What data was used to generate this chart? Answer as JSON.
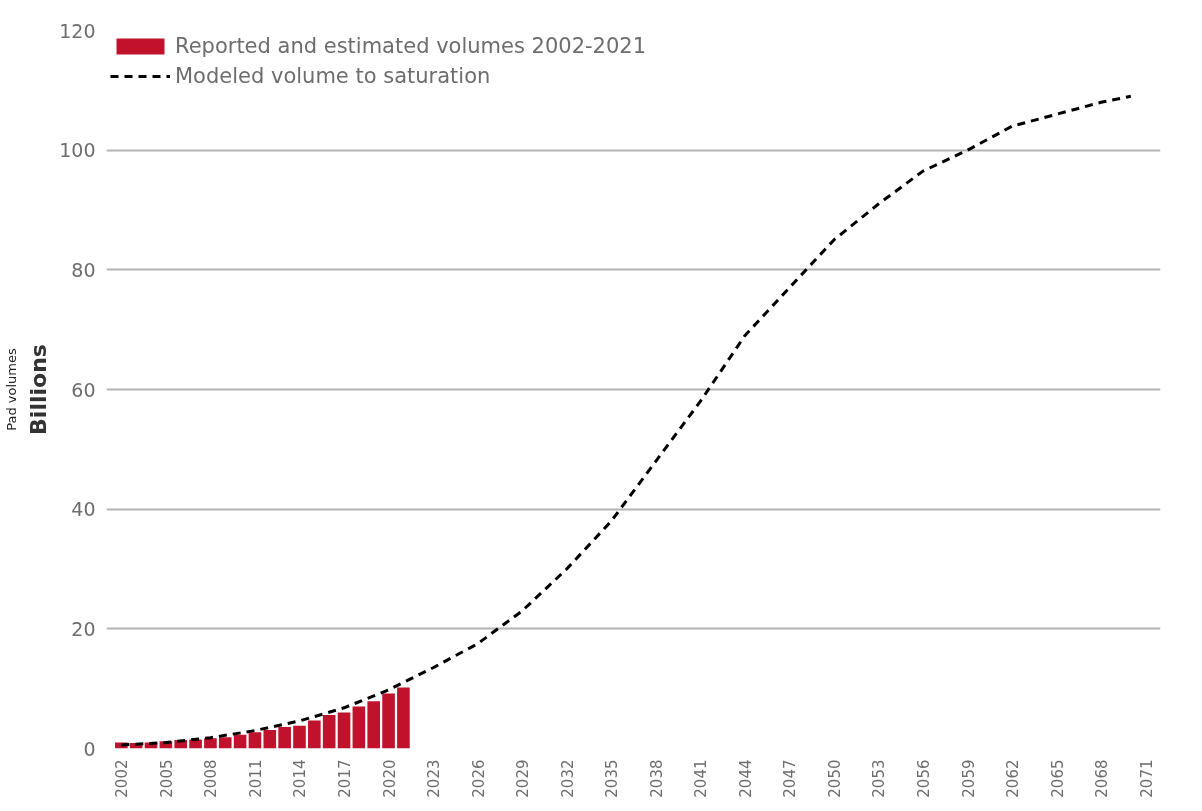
{
  "chart_data": {
    "type": "bar",
    "ylabel": "Billions",
    "annotations": [
      "Pad volumes"
    ],
    "xlim": [
      2001,
      2072
    ],
    "xticks": [
      2002,
      2005,
      2008,
      2011,
      2014,
      2017,
      2020,
      2023,
      2026,
      2029,
      2032,
      2035,
      2038,
      2041,
      2044,
      2047,
      2050,
      2053,
      2056,
      2059,
      2062,
      2065,
      2068,
      2071
    ],
    "ylim": [
      0,
      120
    ],
    "yticks": [
      0,
      20,
      40,
      60,
      80,
      100,
      120
    ],
    "grid": "y",
    "legend": "top left",
    "series": [
      {
        "name": "Reported and estimated volumes 2002-2021",
        "color": "#c0122c",
        "x": [
          2002,
          2003,
          2004,
          2005,
          2006,
          2007,
          2008,
          2009,
          2010,
          2011,
          2012,
          2013,
          2014,
          2015,
          2016,
          2017,
          2018,
          2019,
          2020,
          2021
        ],
        "values": [
          1.0,
          0.9,
          1.0,
          1.2,
          1.4,
          1.5,
          1.7,
          1.9,
          2.3,
          2.7,
          3.1,
          3.6,
          3.8,
          4.7,
          5.6,
          6.0,
          7.0,
          7.9,
          9.2,
          10.2
        ]
      },
      {
        "name": "Modeled volume to saturation",
        "type": "line",
        "color": "#000000",
        "line_style": "dashed",
        "x": [
          2002,
          2005,
          2008,
          2011,
          2014,
          2017,
          2020,
          2023,
          2026,
          2029,
          2032,
          2035,
          2038,
          2041,
          2044,
          2047,
          2050,
          2053,
          2056,
          2059,
          2062,
          2065,
          2068,
          2070
        ],
        "values": [
          0.6,
          1.0,
          1.8,
          3.0,
          4.6,
          6.8,
          9.8,
          13.5,
          17.5,
          23,
          30,
          38,
          48,
          58,
          69,
          77,
          85,
          91,
          96.5,
          100,
          104,
          106,
          108,
          109
        ]
      }
    ]
  }
}
